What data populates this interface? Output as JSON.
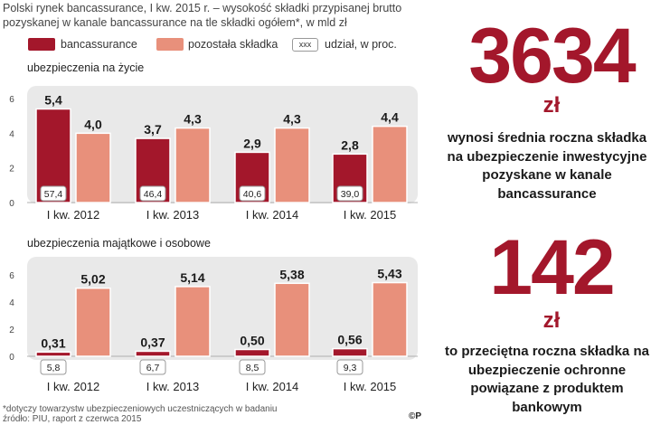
{
  "header": {
    "title": "Polski rynek bancassurance, I kw. 2015 r. – wysokość składki przypisanej brutto pozyskanej w kanale bancassurance na tle składki ogółem*, w mld zł"
  },
  "legend": {
    "bank_label": "bancassurance",
    "other_label": "pozostała składka",
    "share_box": "xxx",
    "share_label": "udział, w proc."
  },
  "colors": {
    "bank": "#a3172b",
    "other": "#e8907b",
    "panel": "#e9e9e9",
    "accent": "#a3172b"
  },
  "chart_data": [
    {
      "type": "bar",
      "title": "ubezpieczenia na życie",
      "categories": [
        "I kw. 2012",
        "I kw. 2013",
        "I kw. 2014",
        "I kw. 2015"
      ],
      "series": [
        {
          "name": "bancassurance",
          "values": [
            5.4,
            3.7,
            2.9,
            2.8
          ],
          "labels": [
            "5,4",
            "3,7",
            "2,9",
            "2,8"
          ]
        },
        {
          "name": "pozostała składka",
          "values": [
            4.0,
            4.3,
            4.3,
            4.4
          ],
          "labels": [
            "4,0",
            "4,3",
            "4,3",
            "4,4"
          ]
        }
      ],
      "share_labels": [
        "57,4",
        "46,4",
        "40,6",
        "39,0"
      ],
      "yticks": [
        "0",
        "2",
        "4",
        "6"
      ],
      "ylim": [
        0,
        6
      ]
    },
    {
      "type": "bar",
      "title": "ubezpieczenia majątkowe i osobowe",
      "categories": [
        "I kw. 2012",
        "I kw. 2013",
        "I kw. 2014",
        "I kw. 2015"
      ],
      "series": [
        {
          "name": "bancassurance",
          "values": [
            0.31,
            0.37,
            0.5,
            0.56
          ],
          "labels": [
            "0,31",
            "0,37",
            "0,50",
            "0,56"
          ]
        },
        {
          "name": "pozostała składka",
          "values": [
            5.02,
            5.14,
            5.38,
            5.43
          ],
          "labels": [
            "5,02",
            "5,14",
            "5,38",
            "5,43"
          ]
        }
      ],
      "share_labels": [
        "5,8",
        "6,7",
        "8,5",
        "9,3"
      ],
      "yticks": [
        "0",
        "2",
        "4",
        "6"
      ],
      "ylim": [
        0,
        6
      ]
    }
  ],
  "side": {
    "stat1_value": "3634",
    "stat1_unit": "zł",
    "stat1_desc": "wynosi średnia roczna składka na ubezpieczenie inwestycyjne pozyskane w kanale bancassurance",
    "stat2_value": "142",
    "stat2_unit": "zł",
    "stat2_desc": "to przeciętna roczna składka na ubezpieczenie ochronne powiązane z produktem bankowym"
  },
  "footer": {
    "note": "*dotyczy towarzystw ubezpieczeniowych uczestniczących w badaniu",
    "source": "źródło: PIU, raport z czerwca 2015",
    "copyright": "©P"
  }
}
